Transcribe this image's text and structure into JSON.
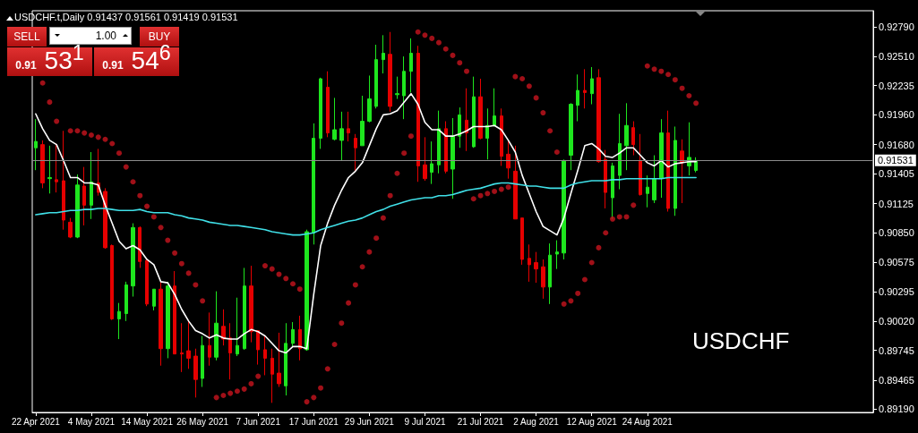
{
  "chart_data": {
    "type": "candlestick",
    "title": "USDCHF.t,Daily 0.91437 0.91561 0.91419 0.91531",
    "annotations": [
      "SELL",
      "1.00",
      "BUY",
      "0.91 53$^{1}$",
      "0.91 54$^{6}$",
      "USDCHF"
    ],
    "categories": [
      "22 Apr 2021",
      null,
      null,
      null,
      null,
      null,
      null,
      null,
      "4 May 2021",
      null,
      null,
      null,
      null,
      null,
      null,
      null,
      "14 May 2021",
      null,
      null,
      null,
      null,
      null,
      null,
      null,
      "26 May 2021",
      null,
      null,
      null,
      null,
      null,
      null,
      null,
      "7 Jun 2021",
      null,
      null,
      null,
      null,
      null,
      null,
      null,
      "17 Jun 2021",
      null,
      null,
      null,
      null,
      null,
      null,
      null,
      "29 Jun 2021",
      null,
      null,
      null,
      null,
      null,
      null,
      null,
      "9 Jul 2021",
      null,
      null,
      null,
      null,
      null,
      null,
      null,
      "21 Jul 2021",
      null,
      null,
      null,
      null,
      null,
      null,
      null,
      "2 Aug 2021",
      null,
      null,
      null,
      null,
      null,
      null,
      null,
      "12 Aug 2021",
      null,
      null,
      null,
      null,
      null,
      null,
      null,
      "24 Aug 2021",
      null,
      null,
      null,
      null,
      null,
      null,
      null
    ],
    "ohlc": [
      [
        0.9165,
        0.9192,
        0.9144,
        0.9171
      ],
      [
        0.9168,
        0.9172,
        0.9127,
        0.9132
      ],
      [
        0.9136,
        0.9167,
        0.9122,
        0.9137
      ],
      [
        0.9135,
        0.9169,
        0.9123,
        0.9133
      ],
      [
        0.9134,
        0.9181,
        0.9088,
        0.9097
      ],
      [
        0.9095,
        0.9099,
        0.908,
        0.9081
      ],
      [
        0.9081,
        0.914,
        0.908,
        0.913
      ],
      [
        0.9129,
        0.9147,
        0.9092,
        0.9111
      ],
      [
        0.9111,
        0.9161,
        0.9098,
        0.9133
      ],
      [
        0.9132,
        0.9164,
        0.912,
        0.9123
      ],
      [
        0.9124,
        0.9127,
        0.907,
        0.9071
      ],
      [
        0.9073,
        0.9074,
        0.9003,
        0.9004
      ],
      [
        0.9004,
        0.9019,
        0.8985,
        0.9011
      ],
      [
        0.9009,
        0.9039,
        0.9002,
        0.9036
      ],
      [
        0.9035,
        0.9094,
        0.9025,
        0.909
      ],
      [
        0.909,
        0.9091,
        0.9052,
        0.9058
      ],
      [
        0.9059,
        0.906,
        0.9016,
        0.9018
      ],
      [
        0.9016,
        0.9032,
        0.9012,
        0.9032
      ],
      [
        0.9032,
        0.9039,
        0.896,
        0.8976
      ],
      [
        0.8976,
        0.9039,
        0.8967,
        0.9035
      ],
      [
        0.9035,
        0.9049,
        0.8971,
        0.8971
      ],
      [
        0.8972,
        0.9,
        0.8954,
        0.8971
      ],
      [
        0.8974,
        0.9002,
        0.8957,
        0.8967
      ],
      [
        0.8969,
        0.8976,
        0.893,
        0.8947
      ],
      [
        0.8948,
        0.8988,
        0.894,
        0.8979
      ],
      [
        0.8979,
        0.901,
        0.896,
        0.8968
      ],
      [
        0.8968,
        0.903,
        0.8965,
        0.9
      ],
      [
        0.8997,
        0.9013,
        0.8979,
        0.8985
      ],
      [
        0.8986,
        0.9,
        0.8947,
        0.8972
      ],
      [
        0.8971,
        0.9024,
        0.8969,
        0.8979
      ],
      [
        0.8976,
        0.9052,
        0.8975,
        0.9035
      ],
      [
        0.9035,
        0.9054,
        0.8982,
        0.8992
      ],
      [
        0.8993,
        0.8993,
        0.8961,
        0.8975
      ],
      [
        0.8975,
        0.8988,
        0.8951,
        0.8967
      ],
      [
        0.8967,
        0.8976,
        0.8925,
        0.8952
      ],
      [
        0.8953,
        0.8991,
        0.894,
        0.8943
      ],
      [
        0.8941,
        0.9,
        0.8932,
        0.8981
      ],
      [
        0.8981,
        0.9001,
        0.8978,
        0.8994
      ],
      [
        0.8994,
        0.9007,
        0.8965,
        0.8976
      ],
      [
        0.8975,
        0.9088,
        0.8974,
        0.9086
      ],
      [
        0.9085,
        0.9188,
        0.9074,
        0.9174
      ],
      [
        0.9174,
        0.9231,
        0.9164,
        0.923
      ],
      [
        0.9222,
        0.9237,
        0.9175,
        0.9179
      ],
      [
        0.9173,
        0.9212,
        0.9172,
        0.9182
      ],
      [
        0.9172,
        0.9199,
        0.9153,
        0.9183
      ],
      [
        0.9183,
        0.9199,
        0.9171,
        0.9179
      ],
      [
        0.9174,
        0.9178,
        0.9143,
        0.9165
      ],
      [
        0.9167,
        0.9214,
        0.9167,
        0.919
      ],
      [
        0.919,
        0.9233,
        0.9189,
        0.9211
      ],
      [
        0.9204,
        0.9262,
        0.9202,
        0.9248
      ],
      [
        0.9248,
        0.9271,
        0.9235,
        0.9254
      ],
      [
        0.9253,
        0.9274,
        0.9199,
        0.9204
      ],
      [
        0.9215,
        0.9232,
        0.9211,
        0.9216
      ],
      [
        0.9214,
        0.9251,
        0.9192,
        0.9237
      ],
      [
        0.9237,
        0.9268,
        0.9217,
        0.9254
      ],
      [
        0.9254,
        0.9261,
        0.9133,
        0.9148
      ],
      [
        0.9149,
        0.9175,
        0.9134,
        0.9136
      ],
      [
        0.9142,
        0.9171,
        0.9131,
        0.915
      ],
      [
        0.9149,
        0.92,
        0.9141,
        0.9183
      ],
      [
        0.9183,
        0.919,
        0.9141,
        0.9143
      ],
      [
        0.9145,
        0.9193,
        0.9117,
        0.9176
      ],
      [
        0.9176,
        0.9203,
        0.9165,
        0.9196
      ],
      [
        0.9191,
        0.9221,
        0.9162,
        0.9179
      ],
      [
        0.9166,
        0.9232,
        0.9165,
        0.9213
      ],
      [
        0.9213,
        0.923,
        0.9173,
        0.9174
      ],
      [
        0.9174,
        0.9202,
        0.9154,
        0.9186
      ],
      [
        0.9186,
        0.9221,
        0.9185,
        0.9195
      ],
      [
        0.9195,
        0.9202,
        0.9148,
        0.9157
      ],
      [
        0.9159,
        0.9172,
        0.9136,
        0.9146
      ],
      [
        0.9143,
        0.9167,
        0.9098,
        0.9098
      ],
      [
        0.9099,
        0.9099,
        0.9055,
        0.906
      ],
      [
        0.9061,
        0.9074,
        0.9039,
        0.9055
      ],
      [
        0.9057,
        0.9067,
        0.9038,
        0.9051
      ],
      [
        0.9053,
        0.906,
        0.9023,
        0.9034
      ],
      [
        0.9034,
        0.9075,
        0.9018,
        0.9064
      ],
      [
        0.9065,
        0.9078,
        0.9051,
        0.9067
      ],
      [
        0.9066,
        0.9154,
        0.906,
        0.9153
      ],
      [
        0.9158,
        0.9207,
        0.9144,
        0.9206
      ],
      [
        0.9205,
        0.9234,
        0.919,
        0.9219
      ],
      [
        0.9219,
        0.9239,
        0.9202,
        0.9217
      ],
      [
        0.9216,
        0.9241,
        0.9206,
        0.923
      ],
      [
        0.9231,
        0.9239,
        0.9151,
        0.9152
      ],
      [
        0.9154,
        0.9163,
        0.9108,
        0.9123
      ],
      [
        0.9118,
        0.9151,
        0.9098,
        0.9148
      ],
      [
        0.9139,
        0.9197,
        0.9126,
        0.9169
      ],
      [
        0.9167,
        0.9207,
        0.9144,
        0.9186
      ],
      [
        0.9184,
        0.919,
        0.9158,
        0.9168
      ],
      [
        0.9153,
        0.9178,
        0.912,
        0.9121
      ],
      [
        0.9122,
        0.9139,
        0.9109,
        0.9128
      ],
      [
        0.9116,
        0.9158,
        0.9113,
        0.9136
      ],
      [
        0.9136,
        0.9192,
        0.9118,
        0.9179
      ],
      [
        0.9179,
        0.92,
        0.9105,
        0.9108
      ],
      [
        0.9108,
        0.9185,
        0.9101,
        0.9172
      ],
      [
        0.9162,
        0.9173,
        0.9113,
        0.9151
      ],
      [
        0.9148,
        0.9189,
        0.9139,
        0.9156
      ],
      [
        0.91437,
        0.91561,
        0.91419,
        0.91531
      ]
    ],
    "colors": [
      "#1ee61e",
      "#e60000",
      "#1ee61e",
      "#e60000",
      "#e60000",
      "#e60000",
      "#1ee61e",
      "#e60000",
      "#1ee61e",
      "#e60000",
      "#e60000",
      "#e60000",
      "#1ee61e",
      "#1ee61e",
      "#1ee61e",
      "#e60000",
      "#e60000",
      "#1ee61e",
      "#e60000",
      "#1ee61e",
      "#e60000",
      "#e60000",
      "#e60000",
      "#e60000",
      "#1ee61e",
      "#e60000",
      "#1ee61e",
      "#e60000",
      "#e60000",
      "#1ee61e",
      "#1ee61e",
      "#e60000",
      "#e60000",
      "#e60000",
      "#e60000",
      "#e60000",
      "#1ee61e",
      "#1ee61e",
      "#e60000",
      "#1ee61e",
      "#1ee61e",
      "#1ee61e",
      "#e60000",
      "#1ee61e",
      "#1ee61e",
      "#e60000",
      "#e60000",
      "#1ee61e",
      "#1ee61e",
      "#1ee61e",
      "#1ee61e",
      "#e60000",
      "#1ee61e",
      "#1ee61e",
      "#1ee61e",
      "#e60000",
      "#e60000",
      "#1ee61e",
      "#1ee61e",
      "#e60000",
      "#1ee61e",
      "#1ee61e",
      "#e60000",
      "#1ee61e",
      "#e60000",
      "#1ee61e",
      "#1ee61e",
      "#e60000",
      "#e60000",
      "#e60000",
      "#e60000",
      "#e60000",
      "#e60000",
      "#e60000",
      "#1ee61e",
      "#1ee61e",
      "#1ee61e",
      "#1ee61e",
      "#1ee61e",
      "#e60000",
      "#1ee61e",
      "#e60000",
      "#e60000",
      "#1ee61e",
      "#1ee61e",
      "#1ee61e",
      "#e60000",
      "#e60000",
      "#1ee61e",
      "#1ee61e",
      "#1ee61e",
      "#e60000",
      "#1ee61e",
      "#e60000",
      "#1ee61e",
      "#1ee61e"
    ],
    "series": [
      {
        "type": "line",
        "color": "#ffffff",
        "marker": "none",
        "values": [
          0.9197,
          0.9183,
          0.9172,
          0.9168,
          0.9153,
          0.9137,
          0.9137,
          0.9132,
          0.9132,
          0.913,
          0.9111,
          0.9094,
          0.9077,
          0.907,
          0.9073,
          0.9069,
          0.906,
          0.9055,
          0.9039,
          0.9038,
          0.9027,
          0.9013,
          0.9002,
          0.8993,
          0.899,
          0.8986,
          0.8989,
          0.8986,
          0.8985,
          0.8985,
          0.899,
          0.8994,
          0.8992,
          0.8988,
          0.8981,
          0.8974,
          0.8972,
          0.8978,
          0.8978,
          0.8976,
          0.9027,
          0.9073,
          0.9094,
          0.9111,
          0.9125,
          0.9137,
          0.9143,
          0.9151,
          0.9167,
          0.9183,
          0.9196,
          0.9197,
          0.92,
          0.9208,
          0.9216,
          0.9206,
          0.9189,
          0.9182,
          0.9182,
          0.9176,
          0.9176,
          0.9178,
          0.9181,
          0.9185,
          0.9185,
          0.9185,
          0.9186,
          0.9182,
          0.9172,
          0.9161,
          0.9139,
          0.9122,
          0.9105,
          0.9091,
          0.9087,
          0.9083,
          0.9099,
          0.9122,
          0.9144,
          0.9167,
          0.9169,
          0.9164,
          0.9157,
          0.9156,
          0.916,
          0.9165,
          0.9165,
          0.9158,
          0.9151,
          0.9148,
          0.9153,
          0.9147,
          0.915,
          0.9151,
          0.9152,
          0.9152
        ]
      },
      {
        "type": "line",
        "color": "#40e0e8",
        "marker": "none",
        "values": [
          0.9102,
          0.9103,
          0.9104,
          0.9104,
          0.9105,
          0.9106,
          0.9106,
          0.9107,
          0.9107,
          0.9108,
          0.9108,
          0.9107,
          0.9106,
          0.9106,
          0.9106,
          0.9107,
          0.9105,
          0.9104,
          0.9104,
          0.9104,
          0.9102,
          0.9101,
          0.9099,
          0.9098,
          0.9097,
          0.9095,
          0.9094,
          0.9093,
          0.9092,
          0.9092,
          0.9091,
          0.909,
          0.9089,
          0.9088,
          0.9086,
          0.9085,
          0.9084,
          0.9083,
          0.9083,
          0.9084,
          0.9085,
          0.9088,
          0.909,
          0.9092,
          0.9094,
          0.9096,
          0.9097,
          0.9099,
          0.9102,
          0.9105,
          0.9107,
          0.911,
          0.9112,
          0.9114,
          0.9116,
          0.9117,
          0.9118,
          0.9118,
          0.912,
          0.912,
          0.9121,
          0.9123,
          0.9125,
          0.9126,
          0.9127,
          0.9129,
          0.9131,
          0.9132,
          0.9132,
          0.9131,
          0.913,
          0.9129,
          0.9129,
          0.9128,
          0.9127,
          0.9127,
          0.9127,
          0.913,
          0.9132,
          0.9133,
          0.9134,
          0.9134,
          0.9134,
          0.9135,
          0.9135,
          0.9136,
          0.9136,
          0.9136,
          0.9136,
          0.9136,
          0.9136,
          0.9137,
          0.9137,
          0.9137,
          0.9137,
          0.9137
        ]
      },
      {
        "type": "scatter",
        "color": "#c8141e",
        "marker": "circle",
        "values": [
          null,
          0.9226,
          0.9208,
          0.919,
          null,
          0.9181,
          0.9181,
          0.9179,
          0.9177,
          0.9175,
          0.9173,
          0.9169,
          0.916,
          0.9147,
          0.9133,
          0.912,
          0.911,
          0.91,
          0.909,
          0.9078,
          0.9066,
          0.9056,
          0.9047,
          0.9036,
          0.9021,
          null,
          0.893,
          0.8932,
          0.8934,
          0.8936,
          0.8938,
          0.8943,
          0.895,
          0.9054,
          0.9051,
          0.9046,
          0.9042,
          0.9037,
          0.9032,
          0.8926,
          0.893,
          0.8939,
          0.8957,
          0.898,
          0.9,
          0.9019,
          0.9036,
          0.9053,
          0.9067,
          0.908,
          0.9099,
          0.912,
          0.9141,
          0.916,
          0.9176,
          0.9274,
          0.9271,
          0.9268,
          0.9264,
          0.9258,
          0.9252,
          0.9245,
          0.9237,
          0.9117,
          0.912,
          0.9122,
          0.9124,
          0.9126,
          0.9128,
          0.9232,
          0.923,
          0.9223,
          0.9212,
          0.9198,
          0.9181,
          0.9161,
          0.9018,
          0.9021,
          0.9028,
          0.9041,
          0.9057,
          0.9071,
          0.9085,
          0.9098,
          0.91,
          0.91,
          0.9111,
          null,
          0.9242,
          0.9239,
          0.9237,
          0.9234,
          0.9229,
          0.9221,
          0.9214,
          0.9207
        ]
      }
    ],
    "ylim": [
      0.8916,
      0.9294
    ],
    "yticks": [
      {
        "value": 0.8919,
        "label": "0.89190"
      },
      {
        "value": 0.89465,
        "label": "0.89465"
      },
      {
        "value": 0.89745,
        "label": "0.89745"
      },
      {
        "value": 0.9002,
        "label": "0.90020"
      },
      {
        "value": 0.90295,
        "label": "0.90295"
      },
      {
        "value": 0.90575,
        "label": "0.90575"
      },
      {
        "value": 0.9085,
        "label": "0.90850"
      },
      {
        "value": 0.91125,
        "label": "0.91125"
      },
      {
        "value": 0.91405,
        "label": "0.91405"
      },
      {
        "value": 0.9168,
        "label": "0.91680"
      },
      {
        "value": 0.9196,
        "label": "0.91960"
      },
      {
        "value": 0.92235,
        "label": "0.92235"
      },
      {
        "value": 0.9251,
        "label": "0.92510"
      },
      {
        "value": 0.9279,
        "label": "0.92790"
      }
    ],
    "ref_lines": [
      {
        "axis": "y",
        "value": 0.91531,
        "label": "0.91531",
        "color": "#8c8c8c",
        "line_style": "solid"
      }
    ],
    "grid": false
  }
}
